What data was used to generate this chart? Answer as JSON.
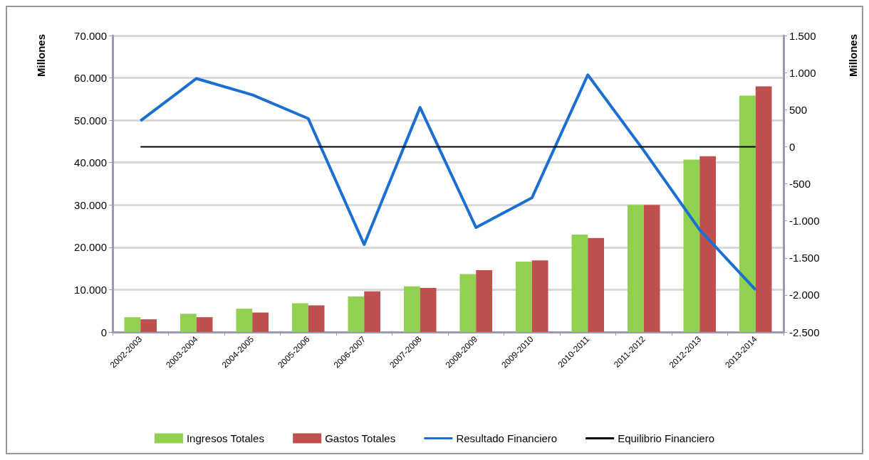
{
  "chart_data": {
    "type": "bar",
    "ylabel": "Millones",
    "y2label": "Millones",
    "categories": [
      "2002-2003",
      "2003-2004",
      "2004-2005",
      "2005-2006",
      "2006-2007",
      "2007-2008",
      "2008-2009",
      "2009-2010",
      "2010-2011",
      "2011-2012",
      "2012-2013",
      "2013-2014"
    ],
    "series": [
      {
        "name": "Ingresos Totales",
        "color": "#92d050",
        "values": [
          3500,
          4300,
          5500,
          6800,
          8400,
          10800,
          13700,
          16600,
          23000,
          30000,
          40700,
          55800
        ]
      },
      {
        "name": "Gastos Totales",
        "color": "#c0504d",
        "values": [
          3000,
          3500,
          4600,
          6300,
          9600,
          10400,
          14600,
          16900,
          22200,
          30000,
          41500,
          58000
        ]
      },
      {
        "name": "Resultado Financiero",
        "type": "line",
        "axis": "y2",
        "color": "#1a6fd0",
        "values": [
          350,
          920,
          700,
          380,
          -1320,
          530,
          -1090,
          -690,
          970,
          -50,
          -1120,
          -1930
        ]
      },
      {
        "name": "Equilibrio Financiero",
        "type": "line",
        "axis": "y2",
        "color": "#000000",
        "values": [
          0,
          0,
          0,
          0,
          0,
          0,
          0,
          0,
          0,
          0,
          0,
          0
        ]
      }
    ],
    "ylim": [
      0,
      70000
    ],
    "yticks": [
      {
        "value": 0,
        "label": "0"
      },
      {
        "value": 10000,
        "label": "10.000"
      },
      {
        "value": 20000,
        "label": "20.000"
      },
      {
        "value": 30000,
        "label": "30.000"
      },
      {
        "value": 40000,
        "label": "40.000"
      },
      {
        "value": 50000,
        "label": "50.000"
      },
      {
        "value": 60000,
        "label": "60.000"
      },
      {
        "value": 70000,
        "label": "70.000"
      }
    ],
    "y2lim": [
      -2500,
      1500
    ],
    "y2ticks": [
      {
        "value": -2500,
        "label": "-2.500"
      },
      {
        "value": -2000,
        "label": "-2.000"
      },
      {
        "value": -1500,
        "label": "-1.500"
      },
      {
        "value": -1000,
        "label": "-1.000"
      },
      {
        "value": -500,
        "label": "-500"
      },
      {
        "value": 0,
        "label": "0"
      },
      {
        "value": 500,
        "label": "500"
      },
      {
        "value": 1000,
        "label": "1.000"
      },
      {
        "value": 1500,
        "label": "1.500"
      }
    ],
    "grid": "y",
    "legend": "bottom",
    "marker": "none",
    "line_style": "solid"
  }
}
